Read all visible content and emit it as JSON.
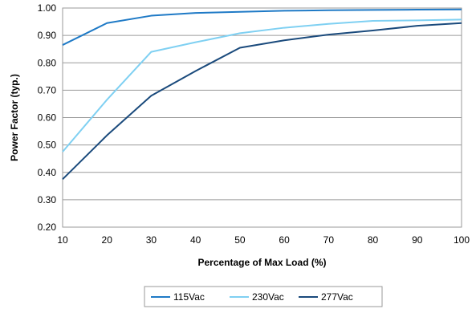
{
  "chart_data": {
    "type": "line",
    "xlabel": "Percentage of Max Load (%)",
    "ylabel": "Power Factor (typ.)",
    "xlim": [
      10,
      100
    ],
    "ylim": [
      0.2,
      1.0
    ],
    "x_ticks": [
      "10",
      "20",
      "30",
      "40",
      "50",
      "60",
      "70",
      "80",
      "90",
      "100"
    ],
    "y_ticks": [
      "0.20",
      "0.30",
      "0.40",
      "0.50",
      "0.60",
      "0.70",
      "0.80",
      "0.90",
      "1.00"
    ],
    "grid": "horizontal",
    "legend_position": "bottom",
    "series": [
      {
        "name": "115Vac",
        "color": "#1f7ac6",
        "x": [
          10,
          20,
          30,
          40,
          50,
          60,
          70,
          80,
          90,
          100
        ],
        "values": [
          0.865,
          0.945,
          0.972,
          0.982,
          0.986,
          0.99,
          0.992,
          0.993,
          0.994,
          0.995
        ]
      },
      {
        "name": "230Vac",
        "color": "#7fd0f2",
        "x": [
          10,
          20,
          30,
          40,
          50,
          60,
          70,
          80,
          90,
          100
        ],
        "values": [
          0.475,
          0.665,
          0.84,
          0.875,
          0.908,
          0.928,
          0.942,
          0.953,
          0.955,
          0.958
        ]
      },
      {
        "name": "277Vac",
        "color": "#1a4a7c",
        "x": [
          10,
          20,
          30,
          40,
          50,
          60,
          70,
          80,
          90,
          100
        ],
        "values": [
          0.375,
          0.535,
          0.68,
          0.77,
          0.855,
          0.882,
          0.903,
          0.918,
          0.935,
          0.945
        ]
      }
    ]
  }
}
